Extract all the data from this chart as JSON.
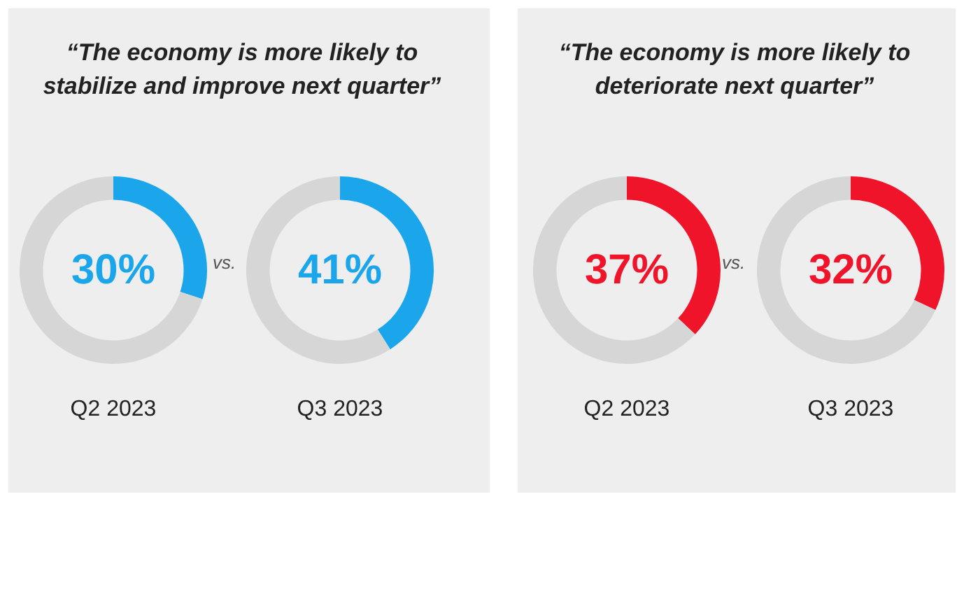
{
  "chart_data": [
    {
      "type": "donut",
      "title": "“The economy is more likely to stabilize and improve next quarter”",
      "categories": [
        null,
        null
      ],
      "values": [
        30,
        70
      ],
      "colors": [
        "#1ba6ec",
        "#d6d6d6"
      ],
      "value_labels": [
        "30%",
        null
      ],
      "xlabel": "Q2 2023",
      "annotations": [
        "vs."
      ]
    },
    {
      "type": "donut",
      "categories": [
        null,
        null
      ],
      "values": [
        41,
        59
      ],
      "colors": [
        "#1ba6ec",
        "#d6d6d6"
      ],
      "value_labels": [
        "41%",
        null
      ],
      "xlabel": "Q3 2023"
    },
    {
      "type": "donut",
      "title": "“The economy is more likely to deteriorate next quarter”",
      "categories": [
        null,
        null
      ],
      "values": [
        37,
        63
      ],
      "colors": [
        "#f0142b",
        "#d6d6d6"
      ],
      "value_labels": [
        "37%",
        null
      ],
      "xlabel": "Q2 2023",
      "annotations": [
        "vs."
      ]
    },
    {
      "type": "donut",
      "categories": [
        null,
        null
      ],
      "values": [
        32,
        68
      ],
      "colors": [
        "#f0142b",
        "#d6d6d6"
      ],
      "value_labels": [
        "32%",
        null
      ],
      "xlabel": "Q3 2023"
    }
  ]
}
